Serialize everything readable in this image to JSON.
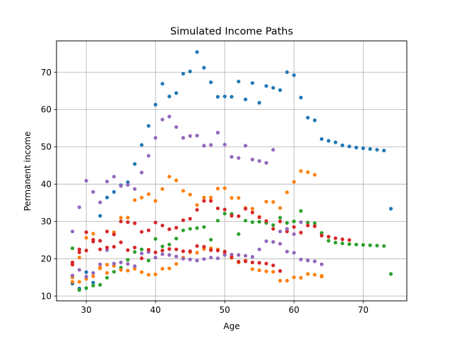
{
  "chart_data": {
    "type": "scatter",
    "title": "Simulated Income Paths",
    "xlabel": "Age",
    "ylabel": "Permanent income",
    "xlim": [
      25.7,
      76.3
    ],
    "ylim": [
      8.7,
      78.4
    ],
    "xticks": [
      30,
      40,
      50,
      60,
      70
    ],
    "yticks": [
      10,
      20,
      30,
      40,
      50,
      60,
      70
    ],
    "grid": true,
    "legend": "none",
    "series": [
      {
        "color": "#1f77b4",
        "x": [
          28,
          29,
          30,
          31,
          32,
          33,
          34,
          35,
          36,
          37,
          38,
          39,
          40,
          41,
          42,
          43,
          44,
          45,
          46,
          47,
          48,
          49,
          50,
          51,
          52,
          53,
          54,
          55,
          56,
          57,
          58,
          59,
          60,
          61,
          62,
          63,
          64,
          65,
          66,
          67,
          68,
          69,
          70,
          71,
          72,
          73,
          74
        ],
        "y": [
          13.3,
          12.0,
          16.4,
          13.6,
          31.5,
          36.4,
          37.9,
          39.7,
          40.5,
          45.4,
          50.5,
          55.6,
          61.3,
          66.9,
          63.5,
          64.4,
          69.6,
          70.2,
          75.4,
          71.2,
          67.3,
          63.4,
          63.5,
          63.4,
          67.5,
          62.7,
          67.1,
          61.8,
          66.3,
          65.8,
          65.2,
          70.0,
          69.2,
          63.2,
          57.8,
          57.1,
          52.1,
          51.6,
          51.2,
          50.4,
          50.1,
          49.8,
          49.6,
          49.4,
          49.2,
          49.0,
          33.4
        ]
      },
      {
        "color": "#ff7f0e",
        "x": [
          28,
          29,
          30,
          31,
          32,
          33,
          34,
          35,
          36,
          37,
          38,
          39,
          40,
          41,
          42,
          43,
          44,
          45,
          46,
          47,
          48,
          49,
          50,
          51,
          52,
          53,
          54,
          55,
          56,
          57,
          58,
          59,
          60,
          61,
          62,
          63,
          64
        ],
        "y": [
          13.8,
          20.3,
          25.6,
          26.7,
          17.4,
          18.4,
          27.1,
          31.0,
          31.0,
          35.7,
          36.4,
          37.3,
          35.5,
          38.7,
          42.0,
          41.0,
          38.2,
          37.2,
          34.4,
          36.4,
          36.4,
          38.8,
          38.9,
          36.3,
          36.3,
          33.6,
          33.4,
          31.2,
          35.3,
          35.2,
          33.6,
          37.8,
          40.6,
          43.5,
          43.2,
          42.5,
          15.2
        ]
      },
      {
        "color": "#2ca02c",
        "x": [
          28,
          29,
          30,
          31,
          32,
          33,
          34,
          35,
          36,
          37,
          38,
          39,
          40,
          41,
          42,
          43,
          44,
          45,
          46,
          47,
          48,
          49,
          50,
          51,
          52,
          53,
          54,
          55,
          56,
          57,
          58,
          59,
          60,
          61,
          62,
          63,
          64,
          65,
          66,
          67,
          68,
          69,
          70,
          71,
          72,
          73,
          74
        ],
        "y": [
          22.8,
          11.6,
          12.1,
          12.8,
          13.0,
          14.9,
          16.5,
          17.6,
          19.7,
          21.8,
          22.5,
          19.5,
          25.3,
          23.3,
          23.8,
          25.4,
          27.6,
          28.0,
          28.2,
          28.5,
          25.1,
          30.2,
          32.1,
          32.0,
          26.6,
          30.2,
          29.8,
          29.9,
          29.6,
          29.0,
          31.0,
          29.6,
          30.0,
          32.8,
          29.7,
          29.5,
          26.9,
          24.8,
          24.3,
          24.1,
          23.9,
          23.8,
          23.7,
          23.6,
          23.5,
          23.4,
          15.9
        ]
      },
      {
        "color": "#d62728",
        "x": [
          28,
          29,
          30,
          31,
          32,
          33,
          34,
          35,
          36,
          37,
          38,
          39,
          40,
          41,
          42,
          43,
          44,
          45,
          46,
          47,
          48,
          49,
          50,
          51,
          52,
          53,
          54,
          55,
          56,
          57,
          58,
          59,
          60,
          61,
          62,
          63,
          64,
          65,
          66,
          67,
          68
        ],
        "y": [
          18.4,
          22.5,
          27.1,
          25.1,
          24.8,
          27.3,
          26.5,
          30.0,
          29.8,
          29.5,
          27.2,
          27.6,
          29.7,
          28.9,
          27.9,
          28.3,
          30.3,
          30.7,
          33.1,
          35.5,
          35.5,
          33.5,
          33.2,
          31.5,
          31.4,
          33.4,
          32.4,
          31.1,
          30.1,
          28.0,
          30.0,
          27.3,
          28.5,
          27.0,
          28.9,
          28.7,
          26.2,
          25.9,
          25.5,
          25.2,
          25.0
        ]
      },
      {
        "color": "#9467bd",
        "x": [
          28,
          29,
          30,
          31,
          32,
          33,
          34,
          35,
          36,
          37,
          38,
          39,
          40,
          41,
          42,
          43,
          44,
          45,
          46,
          47,
          48,
          49,
          50,
          51,
          52,
          53,
          54,
          55,
          56,
          57,
          58,
          59,
          60,
          61,
          62,
          63,
          64
        ],
        "y": [
          27.3,
          33.8,
          40.9,
          37.9,
          35.1,
          40.7,
          42.0,
          39.5,
          39.8,
          38.7,
          43.1,
          47.6,
          52.4,
          57.3,
          58.1,
          55.3,
          52.4,
          52.9,
          53.0,
          50.3,
          50.5,
          53.8,
          50.6,
          47.3,
          47.0,
          50.3,
          46.6,
          46.2,
          45.7,
          49.2,
          27.3,
          28.0,
          26.6,
          29.8,
          19.5,
          19.3,
          18.5
        ]
      },
      {
        "color": "#ff7f0e",
        "x": [
          28,
          29,
          30,
          31,
          32,
          33,
          34,
          35,
          36,
          37,
          38,
          39,
          40,
          41,
          42,
          43,
          44,
          45,
          46,
          47,
          48,
          49,
          50,
          51,
          52,
          53,
          54,
          55,
          56,
          57,
          58,
          59,
          60,
          61,
          62,
          63,
          64
        ],
        "y": [
          15.0,
          13.8,
          14.6,
          15.3,
          17.7,
          16.2,
          18.1,
          17.0,
          16.8,
          17.3,
          16.4,
          15.7,
          15.8,
          17.3,
          17.4,
          18.6,
          20.3,
          21.7,
          21.6,
          22.6,
          22.8,
          22.5,
          21.3,
          20.2,
          19.0,
          19.5,
          17.2,
          16.9,
          16.6,
          16.5,
          14.1,
          14.1,
          15.0,
          14.9,
          15.9,
          15.7,
          15.4
        ]
      },
      {
        "color": "#9467bd",
        "x": [
          28,
          29,
          30,
          31,
          32,
          33,
          34,
          35,
          36,
          37,
          38,
          39,
          40,
          41,
          42,
          43,
          44,
          45,
          46,
          47,
          48,
          49,
          50,
          51,
          52,
          53,
          54,
          55,
          56,
          57,
          58,
          59,
          60,
          61,
          62
        ],
        "y": [
          15.5,
          17.0,
          15.2,
          16.2,
          18.5,
          22.3,
          18.7,
          19.0,
          18.6,
          18.0,
          21.4,
          21.8,
          20.3,
          21.2,
          21.0,
          20.6,
          20.0,
          19.8,
          19.5,
          19.9,
          20.3,
          20.1,
          21.0,
          21.1,
          21.0,
          20.8,
          20.5,
          22.5,
          24.7,
          24.5,
          24.0,
          21.9,
          21.6,
          19.8,
          19.6
        ]
      },
      {
        "color": "#d62728",
        "x": [
          28,
          29,
          30,
          31,
          32,
          33,
          34,
          35,
          36,
          37,
          38,
          39,
          40,
          41,
          42,
          43,
          44,
          45,
          46,
          47,
          48,
          49,
          50,
          51,
          52,
          53,
          54,
          55,
          56,
          57,
          58
        ],
        "y": [
          19.0,
          21.7,
          22.2,
          24.6,
          22.5,
          23.0,
          23.2,
          24.4,
          22.3,
          23.0,
          20.1,
          22.4,
          21.7,
          22.2,
          22.6,
          22.5,
          22.0,
          22.0,
          23.4,
          23.2,
          22.3,
          22.2,
          21.9,
          20.4,
          19.2,
          19.3,
          19.0,
          18.9,
          18.7,
          18.2,
          16.7
        ]
      }
    ]
  }
}
